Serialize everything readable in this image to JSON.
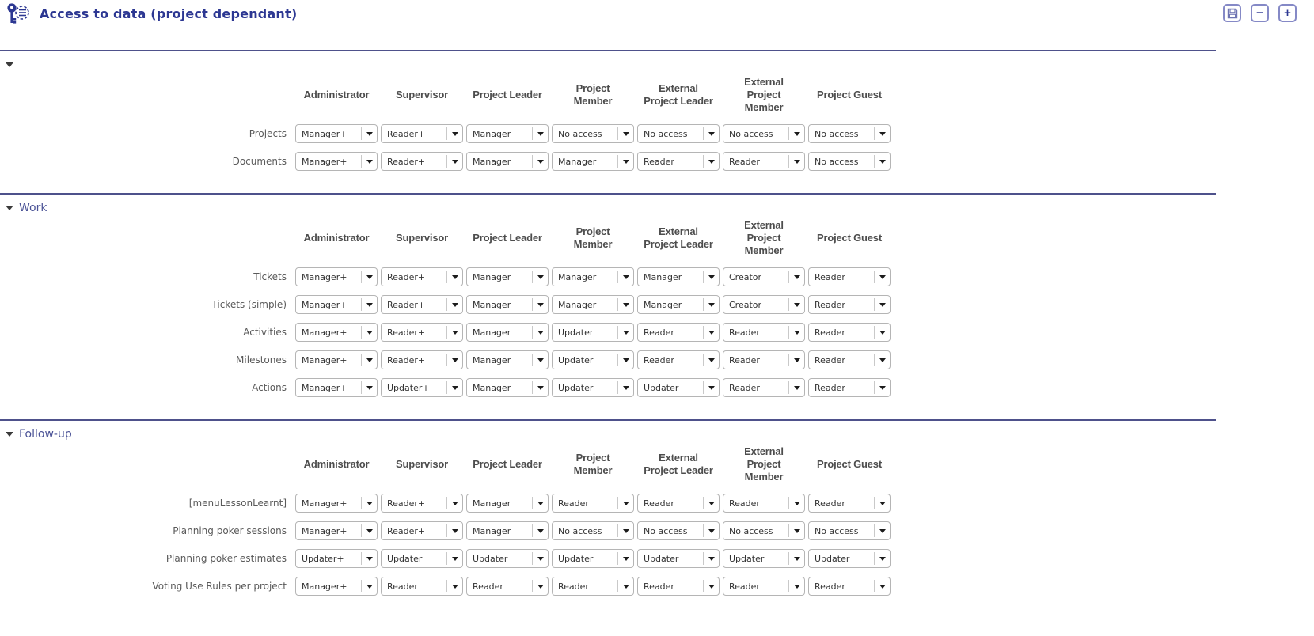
{
  "header": {
    "title": "Access to data (project dependant)",
    "icon": "key-gear-icon",
    "buttons": {
      "save": "save",
      "collapse_all_label": "−",
      "expand_all_label": "+"
    }
  },
  "table": {
    "columns": [
      "Administrator",
      "Supervisor",
      "Project Leader",
      "Project Member",
      "External Project Leader",
      "External Project Member",
      "Project Guest"
    ],
    "sections": [
      {
        "title": "",
        "rows": [
          {
            "label": "Projects",
            "values": [
              "Manager+",
              "Reader+",
              "Manager",
              "No access",
              "No access",
              "No access",
              "No access"
            ]
          },
          {
            "label": "Documents",
            "values": [
              "Manager+",
              "Reader+",
              "Manager",
              "Manager",
              "Reader",
              "Reader",
              "No access"
            ]
          }
        ]
      },
      {
        "title": "Work",
        "rows": [
          {
            "label": "Tickets",
            "values": [
              "Manager+",
              "Reader+",
              "Manager",
              "Manager",
              "Manager",
              "Creator",
              "Reader"
            ]
          },
          {
            "label": "Tickets (simple)",
            "values": [
              "Manager+",
              "Reader+",
              "Manager",
              "Manager",
              "Manager",
              "Creator",
              "Reader"
            ]
          },
          {
            "label": "Activities",
            "values": [
              "Manager+",
              "Reader+",
              "Manager",
              "Updater",
              "Reader",
              "Reader",
              "Reader"
            ]
          },
          {
            "label": "Milestones",
            "values": [
              "Manager+",
              "Reader+",
              "Manager",
              "Updater",
              "Reader",
              "Reader",
              "Reader"
            ]
          },
          {
            "label": "Actions",
            "values": [
              "Manager+",
              "Updater+",
              "Manager",
              "Updater",
              "Updater",
              "Reader",
              "Reader"
            ]
          }
        ]
      },
      {
        "title": "Follow-up",
        "rows": [
          {
            "label": "[menuLessonLearnt]",
            "values": [
              "Manager+",
              "Reader+",
              "Manager",
              "Reader",
              "Reader",
              "Reader",
              "Reader"
            ]
          },
          {
            "label": "Planning poker sessions",
            "values": [
              "Manager+",
              "Reader+",
              "Manager",
              "No access",
              "No access",
              "No access",
              "No access"
            ]
          },
          {
            "label": "Planning poker estimates",
            "values": [
              "Updater+",
              "Updater",
              "Updater",
              "Updater",
              "Updater",
              "Updater",
              "Updater"
            ]
          },
          {
            "label": "Voting Use Rules per project",
            "values": [
              "Manager+",
              "Reader",
              "Reader",
              "Reader",
              "Reader",
              "Reader",
              "Reader"
            ]
          }
        ]
      }
    ]
  },
  "colors": {
    "title_text": "#2c3792",
    "section_title_text": "#4a5296",
    "divider": "#4e518b",
    "bottom_bar": "#30345a",
    "column_header_text": "#4d4d4d",
    "row_label_text": "#5a5a5a",
    "dropdown_border": "#b5b5b5",
    "button_border": "#8589c6"
  }
}
